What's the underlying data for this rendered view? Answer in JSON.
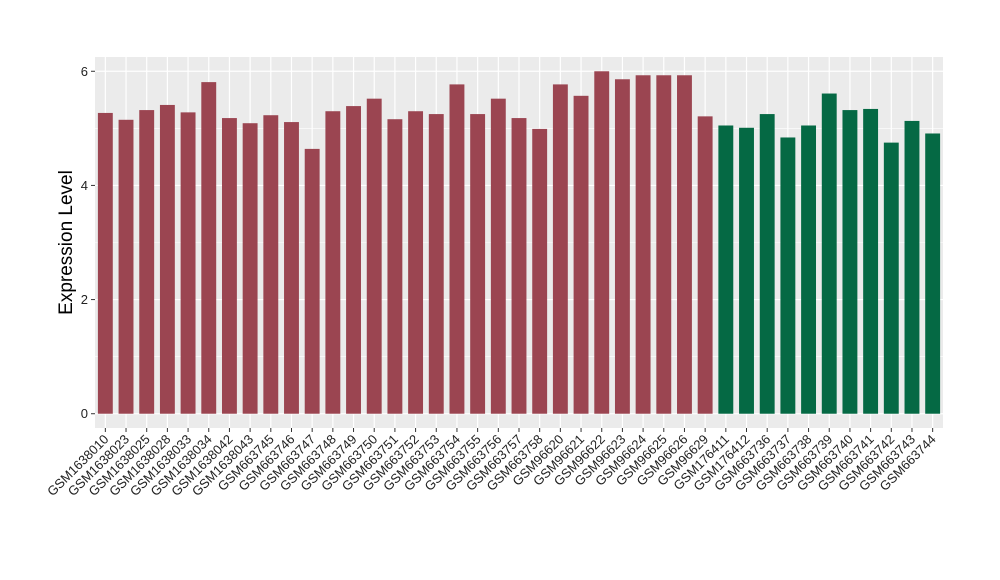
{
  "chart_data": {
    "type": "bar",
    "xlabel": "",
    "ylabel": "Expression Level",
    "ylim": [
      -0.25,
      6.25
    ],
    "yticks": [
      0,
      2,
      4,
      6
    ],
    "grid": true,
    "panel_background": "#ebebeb",
    "grid_color": "#ffffff",
    "categories": [
      "GSM1638010",
      "GSM1638023",
      "GSM1638025",
      "GSM1638028",
      "GSM1638033",
      "GSM1638034",
      "GSM1638042",
      "GSM1638043",
      "GSM663745",
      "GSM663746",
      "GSM663747",
      "GSM663748",
      "GSM663749",
      "GSM663750",
      "GSM663751",
      "GSM663752",
      "GSM663753",
      "GSM663754",
      "GSM663755",
      "GSM663756",
      "GSM663757",
      "GSM663758",
      "GSM96620",
      "GSM96621",
      "GSM96622",
      "GSM96623",
      "GSM96624",
      "GSM96625",
      "GSM96626",
      "GSM96629",
      "GSM176411",
      "GSM176412",
      "GSM663736",
      "GSM663737",
      "GSM663738",
      "GSM663739",
      "GSM663740",
      "GSM663741",
      "GSM663742",
      "GSM663743",
      "GSM663744"
    ],
    "values": [
      5.27,
      5.15,
      5.32,
      5.41,
      5.28,
      5.81,
      5.18,
      5.09,
      5.23,
      5.11,
      4.64,
      5.3,
      5.39,
      5.52,
      5.16,
      5.3,
      5.25,
      5.77,
      5.25,
      5.52,
      5.18,
      4.99,
      5.77,
      5.57,
      6.0,
      5.86,
      5.93,
      5.93,
      5.93,
      5.21,
      5.05,
      5.01,
      5.25,
      4.84,
      5.05,
      5.61,
      5.32,
      5.34,
      4.75,
      5.13,
      4.91
    ],
    "bar_colors": [
      "#9b4551",
      "#9b4551",
      "#9b4551",
      "#9b4551",
      "#9b4551",
      "#9b4551",
      "#9b4551",
      "#9b4551",
      "#9b4551",
      "#9b4551",
      "#9b4551",
      "#9b4551",
      "#9b4551",
      "#9b4551",
      "#9b4551",
      "#9b4551",
      "#9b4551",
      "#9b4551",
      "#9b4551",
      "#9b4551",
      "#9b4551",
      "#9b4551",
      "#9b4551",
      "#9b4551",
      "#9b4551",
      "#9b4551",
      "#9b4551",
      "#9b4551",
      "#9b4551",
      "#9b4551",
      "#056944",
      "#056944",
      "#056944",
      "#056944",
      "#056944",
      "#056944",
      "#056944",
      "#056944",
      "#056944",
      "#056944",
      "#056944"
    ]
  }
}
